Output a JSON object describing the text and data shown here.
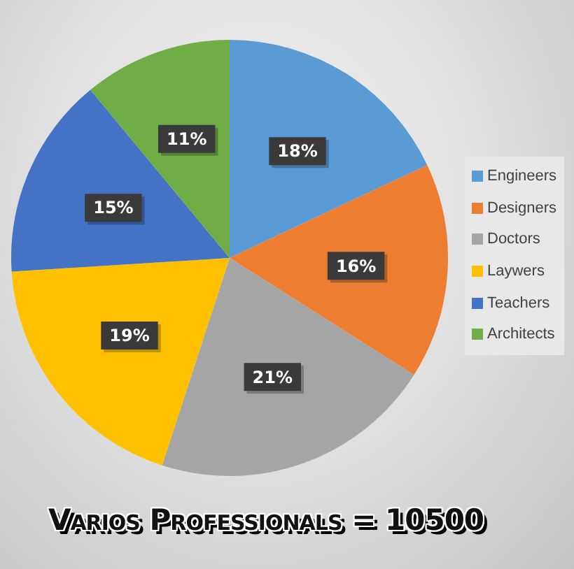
{
  "chart_data": {
    "type": "pie",
    "title": "Varios Professionals = 10500",
    "categories": [
      "Engineers",
      "Designers",
      "Doctors",
      "Laywers",
      "Teachers",
      "Architects"
    ],
    "values": [
      18,
      16,
      21,
      19,
      15,
      11
    ],
    "colors": [
      "#5b9bd5",
      "#ed7d31",
      "#a5a5a5",
      "#ffc000",
      "#4472c4",
      "#70ad47"
    ],
    "value_labels": [
      "18%",
      "16%",
      "21%",
      "19%",
      "15%",
      "11%"
    ],
    "legend": "right"
  }
}
